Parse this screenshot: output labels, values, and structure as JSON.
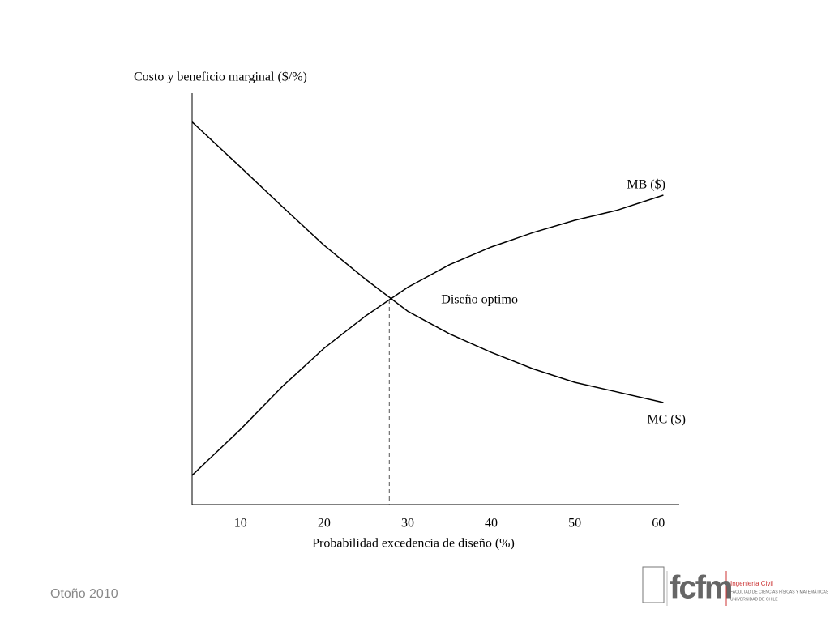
{
  "chart_data": {
    "type": "line",
    "y_label": "Costo y beneficio marginal ($/%)",
    "x_label": "Probabilidad excedencia de diseño (%)",
    "x": [
      4.2,
      10,
      15,
      20,
      25,
      30,
      35,
      40,
      45,
      50,
      55,
      60.6
    ],
    "series": [
      {
        "name": "MB ($)",
        "color": "#000000",
        "values": [
          7.1,
          18.3,
          28.7,
          38,
          45.9,
          52.8,
          58.3,
          62.6,
          66.1,
          69.1,
          71.5,
          75.2
        ]
      },
      {
        "name": "MC ($)",
        "color": "#000000",
        "values": [
          93,
          82,
          72.4,
          63,
          54.7,
          47,
          41.5,
          37,
          33,
          29.7,
          27.4,
          24.8
        ]
      }
    ],
    "xlim": [
      4.2,
      62.5
    ],
    "xticks": [
      10,
      20,
      30,
      40,
      50,
      60
    ],
    "ylim": [
      0,
      100
    ],
    "optimum": {
      "x": 27.8,
      "y": 49.8,
      "label": "Diseño optimo"
    }
  },
  "footer": {
    "date": "Otoño 2010",
    "logo": "fcfm",
    "school": "Ingeniería Civil",
    "faculty": "FACULTAD DE CIENCIAS FÍSICAS Y MATEMÁTICAS",
    "university": "UNIVERSIDAD DE CHILE"
  }
}
